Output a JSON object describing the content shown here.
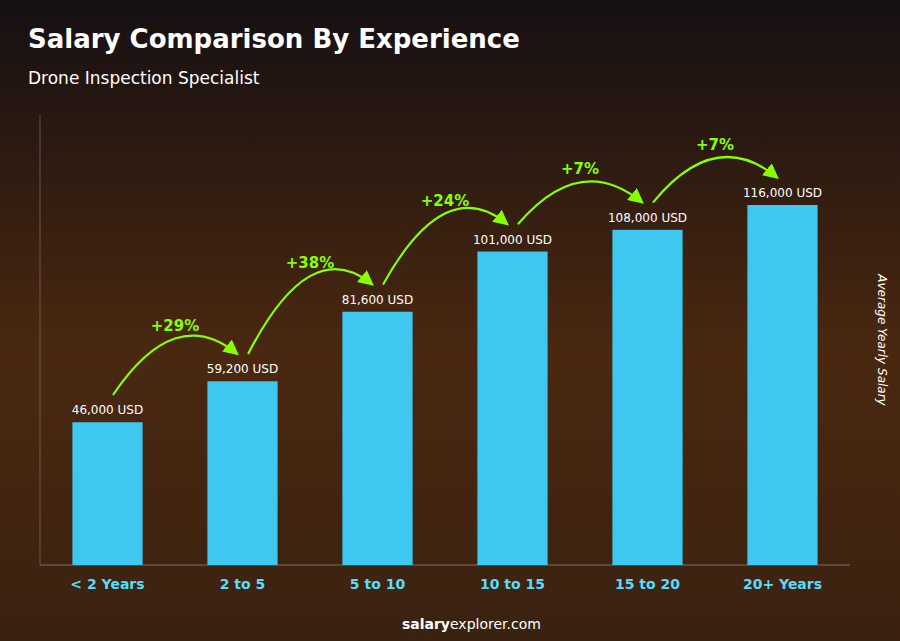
{
  "chart_data": {
    "type": "bar",
    "title": "Salary Comparison By Experience",
    "subtitle": "Drone Inspection Specialist",
    "categories": [
      "< 2 Years",
      "2 to 5",
      "5 to 10",
      "10 to 15",
      "15 to 20",
      "20+ Years"
    ],
    "values": [
      46000,
      59200,
      81600,
      101000,
      108000,
      116000
    ],
    "value_labels": [
      "46,000 USD",
      "59,200 USD",
      "81,600 USD",
      "101,000 USD",
      "108,000 USD",
      "116,000 USD"
    ],
    "data_labels": true,
    "annotations": [
      "+29%",
      "+38%",
      "+24%",
      "+7%",
      "+7%"
    ],
    "color": "#3EC8F0",
    "ylabel": "Average Yearly Salary",
    "ylim": [
      0,
      145000
    ],
    "tick_labels": "x",
    "grid": false,
    "footer": [
      "salary",
      "explorer.com"
    ]
  }
}
